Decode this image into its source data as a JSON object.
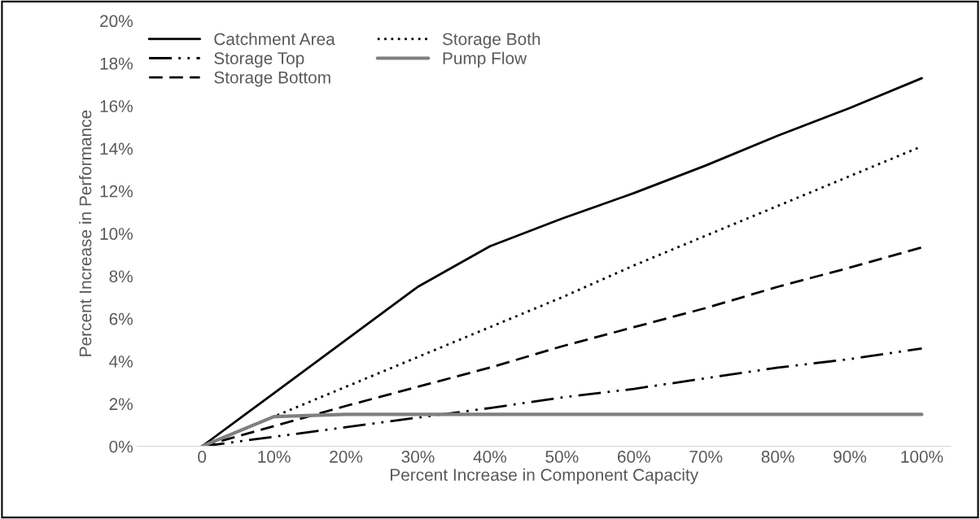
{
  "chart_data": {
    "type": "line",
    "xlabel": "Percent Increase in Component Capacity",
    "ylabel": "Percent Increase in Performance",
    "categories": [
      "0",
      "10%",
      "20%",
      "30%",
      "40%",
      "50%",
      "60%",
      "70%",
      "80%",
      "90%",
      "100%"
    ],
    "series": [
      {
        "name": "Catchment Area",
        "color": "#000000",
        "line_style": "solid",
        "values": [
          0,
          2.5,
          5.0,
          7.5,
          9.4,
          10.7,
          11.9,
          13.2,
          14.6,
          15.9,
          17.3
        ]
      },
      {
        "name": "Storage Top",
        "color": "#000000",
        "line_style": "dashdot",
        "values": [
          0,
          0.45,
          0.9,
          1.35,
          1.8,
          2.3,
          2.7,
          3.2,
          3.7,
          4.1,
          4.6
        ]
      },
      {
        "name": "Storage Bottom",
        "color": "#000000",
        "line_style": "dashed",
        "values": [
          0,
          0.95,
          1.9,
          2.8,
          3.7,
          4.7,
          5.6,
          6.5,
          7.5,
          8.4,
          9.35
        ]
      },
      {
        "name": "Storage Both",
        "color": "#000000",
        "line_style": "dotted",
        "values": [
          0,
          1.4,
          2.8,
          4.2,
          5.6,
          7.0,
          8.5,
          9.9,
          11.3,
          12.7,
          14.1
        ]
      },
      {
        "name": "Pump Flow",
        "color": "#7f7f7f",
        "line_style": "solid",
        "values": [
          0,
          1.4,
          1.5,
          1.5,
          1.5,
          1.5,
          1.5,
          1.5,
          1.5,
          1.5,
          1.5
        ]
      }
    ],
    "ylim": [
      0,
      20
    ],
    "yticks": [
      {
        "value": 0,
        "label": "0%"
      },
      {
        "value": 2,
        "label": "2%"
      },
      {
        "value": 4,
        "label": "4%"
      },
      {
        "value": 6,
        "label": "6%"
      },
      {
        "value": 8,
        "label": "8%"
      },
      {
        "value": 10,
        "label": "10%"
      },
      {
        "value": 12,
        "label": "12%"
      },
      {
        "value": 14,
        "label": "14%"
      },
      {
        "value": 16,
        "label": "16%"
      },
      {
        "value": 18,
        "label": "18%"
      },
      {
        "value": 20,
        "label": "20%"
      }
    ],
    "legend": "top left",
    "grid": false
  }
}
